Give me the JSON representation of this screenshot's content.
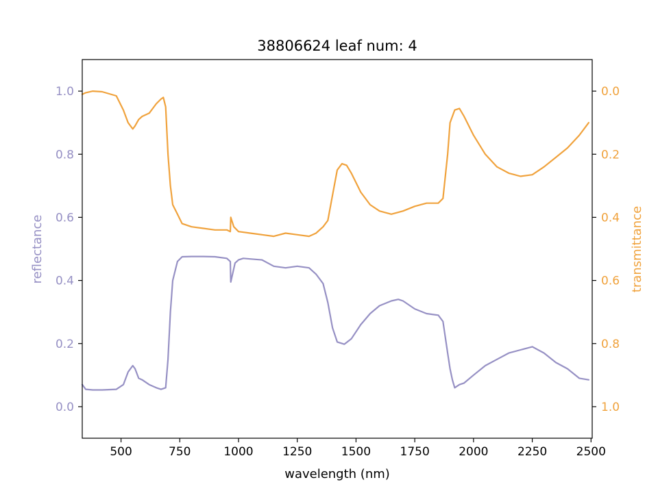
{
  "chart_data": {
    "type": "line",
    "title": "38806624 leaf num: 4",
    "xlabel": "wavelength (nm)",
    "ylabel_left": "reflectance",
    "ylabel_right": "transmittance",
    "xlim": [
      335,
      2505
    ],
    "ylim_left": [
      -0.1,
      1.1
    ],
    "ylim_right": [
      1.1,
      -0.1
    ],
    "right_axis_inverted": true,
    "grid": false,
    "legend": "none",
    "x_ticks": [
      500,
      750,
      1000,
      1250,
      1500,
      1750,
      2000,
      2250,
      2500
    ],
    "x_tick_labels": [
      "500",
      "750",
      "1000",
      "1250",
      "1500",
      "1750",
      "2000",
      "2250",
      "2500"
    ],
    "y_left_ticks": [
      0.0,
      0.2,
      0.4,
      0.6,
      0.8,
      1.0
    ],
    "y_left_tick_labels": [
      "0.0",
      "0.2",
      "0.4",
      "0.6",
      "0.8",
      "1.0"
    ],
    "y_right_ticks": [
      0.0,
      0.2,
      0.4,
      0.6,
      0.8,
      1.0
    ],
    "y_right_tick_labels": [
      "0.0",
      "0.2",
      "0.4",
      "0.6",
      "0.8",
      "1.0"
    ],
    "colors": {
      "reflectance": "#9690c4",
      "transmittance": "#f0a23c",
      "axis": "#000000"
    },
    "series": [
      {
        "axis": "left",
        "color": "#9690c4",
        "x": [
          335,
          350,
          380,
          420,
          480,
          510,
          530,
          550,
          560,
          575,
          590,
          620,
          650,
          670,
          690,
          700,
          710,
          720,
          740,
          760,
          800,
          850,
          900,
          950,
          965,
          967,
          985,
          1000,
          1020,
          1050,
          1100,
          1150,
          1200,
          1250,
          1300,
          1330,
          1360,
          1380,
          1400,
          1420,
          1450,
          1480,
          1520,
          1560,
          1600,
          1650,
          1680,
          1700,
          1750,
          1800,
          1850,
          1870,
          1890,
          1900,
          1910,
          1920,
          1940,
          1960,
          2000,
          2050,
          2100,
          2150,
          2200,
          2250,
          2300,
          2350,
          2400,
          2450,
          2490
        ],
        "values": [
          0.07,
          0.055,
          0.053,
          0.053,
          0.055,
          0.07,
          0.11,
          0.13,
          0.12,
          0.09,
          0.085,
          0.07,
          0.06,
          0.055,
          0.06,
          0.15,
          0.3,
          0.4,
          0.46,
          0.475,
          0.476,
          0.476,
          0.475,
          0.47,
          0.46,
          0.395,
          0.455,
          0.465,
          0.47,
          0.468,
          0.465,
          0.445,
          0.44,
          0.445,
          0.44,
          0.42,
          0.39,
          0.33,
          0.25,
          0.205,
          0.198,
          0.215,
          0.26,
          0.295,
          0.32,
          0.335,
          0.34,
          0.335,
          0.31,
          0.295,
          0.29,
          0.27,
          0.17,
          0.12,
          0.085,
          0.06,
          0.07,
          0.075,
          0.1,
          0.13,
          0.15,
          0.17,
          0.18,
          0.19,
          0.17,
          0.14,
          0.12,
          0.09,
          0.085
        ]
      },
      {
        "axis": "right",
        "color": "#f0a23c",
        "x": [
          335,
          350,
          380,
          420,
          480,
          510,
          530,
          550,
          560,
          575,
          590,
          620,
          650,
          670,
          680,
          690,
          700,
          710,
          720,
          740,
          760,
          800,
          850,
          900,
          950,
          965,
          967,
          980,
          1000,
          1050,
          1100,
          1150,
          1200,
          1250,
          1300,
          1330,
          1360,
          1380,
          1400,
          1420,
          1440,
          1460,
          1480,
          1520,
          1560,
          1600,
          1650,
          1700,
          1750,
          1800,
          1850,
          1870,
          1890,
          1900,
          1920,
          1940,
          1960,
          2000,
          2050,
          2100,
          2150,
          2200,
          2250,
          2300,
          2350,
          2400,
          2450,
          2490
        ],
        "values": [
          0.01,
          0.005,
          0.0,
          0.002,
          0.015,
          0.06,
          0.1,
          0.12,
          0.11,
          0.09,
          0.08,
          0.07,
          0.04,
          0.025,
          0.02,
          0.05,
          0.2,
          0.3,
          0.36,
          0.39,
          0.42,
          0.43,
          0.435,
          0.44,
          0.44,
          0.445,
          0.4,
          0.43,
          0.445,
          0.45,
          0.455,
          0.46,
          0.45,
          0.455,
          0.46,
          0.45,
          0.43,
          0.41,
          0.33,
          0.25,
          0.23,
          0.235,
          0.26,
          0.32,
          0.36,
          0.38,
          0.39,
          0.38,
          0.365,
          0.355,
          0.355,
          0.34,
          0.2,
          0.1,
          0.06,
          0.055,
          0.08,
          0.14,
          0.2,
          0.24,
          0.26,
          0.27,
          0.265,
          0.24,
          0.21,
          0.18,
          0.14,
          0.1
        ]
      }
    ]
  }
}
